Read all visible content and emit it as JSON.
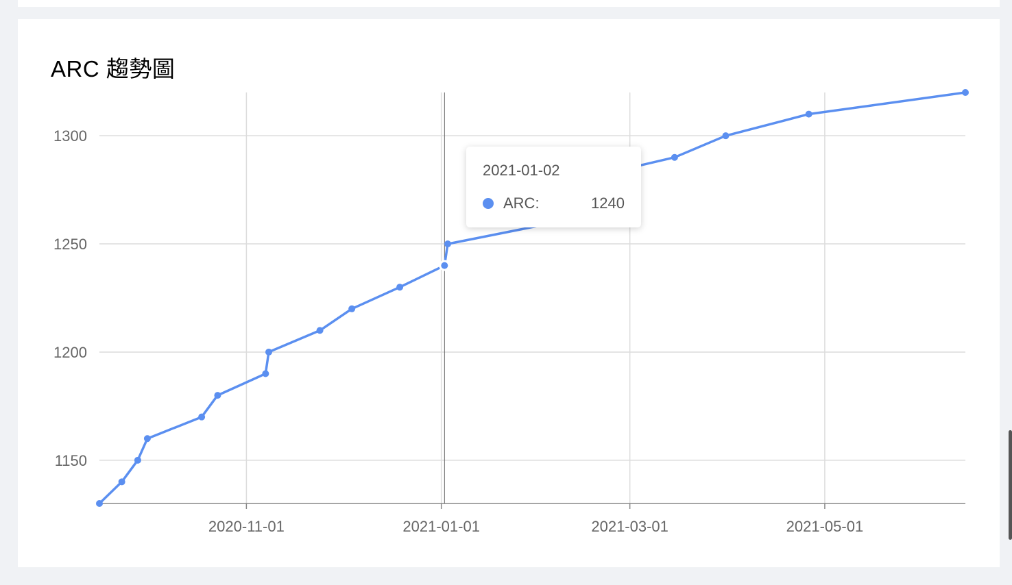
{
  "chart_data": {
    "type": "line",
    "title": "ARC 趨勢圖",
    "xlabel": "",
    "ylabel": "",
    "x_ticks": [
      "2020-11-01",
      "2021-01-01",
      "2021-03-01",
      "2021-05-01"
    ],
    "y_ticks": [
      1150,
      1200,
      1250,
      1300
    ],
    "ylim": [
      1130,
      1320
    ],
    "xlim": [
      "2020-09-16",
      "2021-06-14"
    ],
    "grid": true,
    "series": [
      {
        "name": "ARC",
        "color": "#5b8ff0",
        "points": [
          {
            "x": "2020-09-16",
            "y": 1130
          },
          {
            "x": "2020-09-23",
            "y": 1140
          },
          {
            "x": "2020-09-28",
            "y": 1150
          },
          {
            "x": "2020-10-01",
            "y": 1160
          },
          {
            "x": "2020-10-18",
            "y": 1170
          },
          {
            "x": "2020-10-23",
            "y": 1180
          },
          {
            "x": "2020-11-07",
            "y": 1190
          },
          {
            "x": "2020-11-08",
            "y": 1200
          },
          {
            "x": "2020-11-24",
            "y": 1210
          },
          {
            "x": "2020-12-04",
            "y": 1220
          },
          {
            "x": "2020-12-19",
            "y": 1230
          },
          {
            "x": "2021-01-02",
            "y": 1240
          },
          {
            "x": "2021-01-03",
            "y": 1250
          },
          {
            "x": "2021-02-06",
            "y": 1260
          },
          {
            "x": "2021-02-08",
            "y": 1270
          },
          {
            "x": "2021-02-14",
            "y": 1280
          },
          {
            "x": "2021-03-15",
            "y": 1290
          },
          {
            "x": "2021-03-31",
            "y": 1300
          },
          {
            "x": "2021-04-26",
            "y": 1310
          },
          {
            "x": "2021-06-14",
            "y": 1320
          }
        ]
      }
    ]
  },
  "tooltip": {
    "date": "2021-01-02",
    "series": "ARC:",
    "value": "1240",
    "hover_x": "2021-01-02",
    "hover_y": 1240
  }
}
